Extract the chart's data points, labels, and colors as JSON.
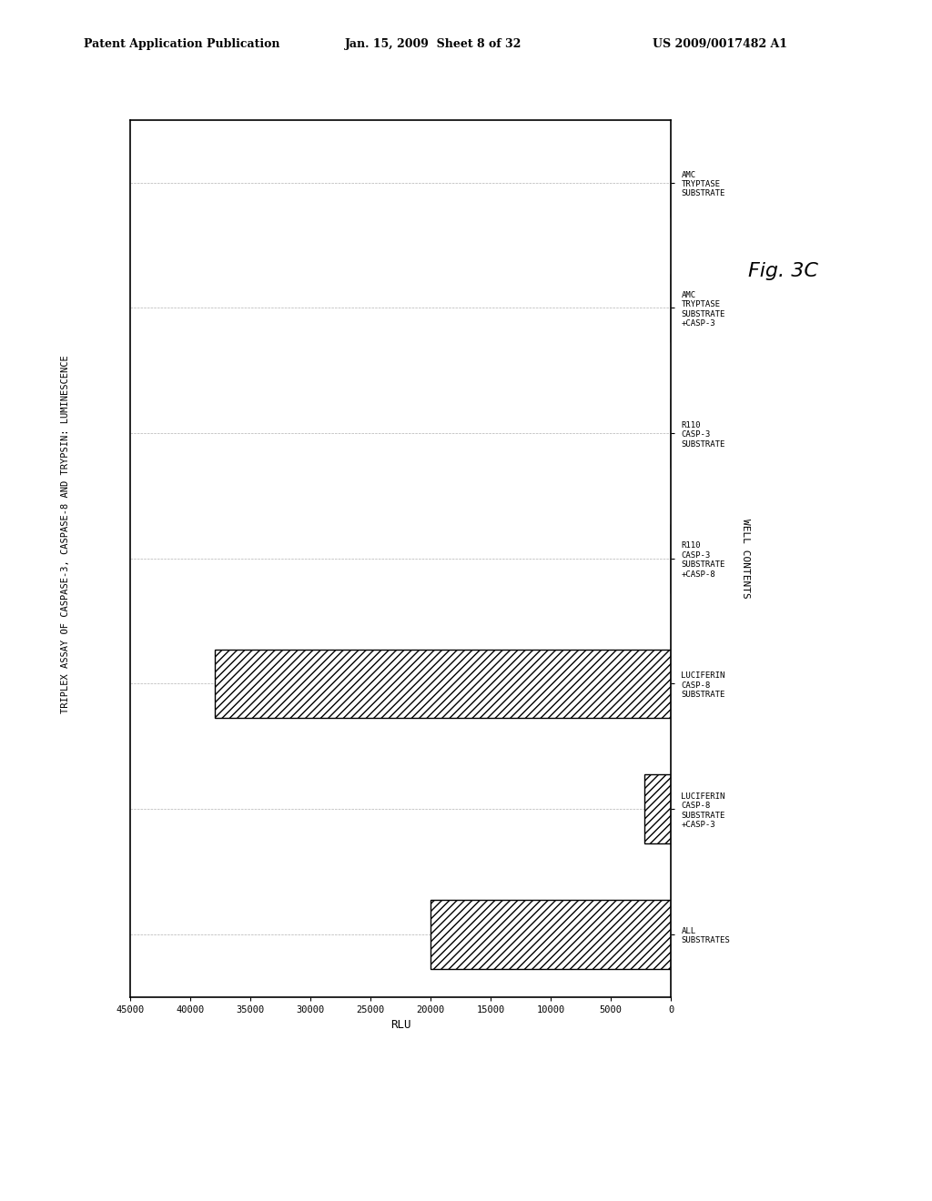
{
  "title": "TRIPLEX ASSAY OF CASPASE-3, CASPASE-8 AND TRYPSIN: LUMINESCENCE",
  "ylabel": "RLU",
  "xlabel_label": "WELL CONTENTS",
  "categories": [
    "AMC\nTRYPTASE\nSUBSTRATE",
    "AMC\nTRYPTASE\nSUBSTRATE\n+CASP-3",
    "R110\nCASP-3\nSUBSTRATE",
    "R110\nCASP-3\nSUBSTRATE\n+CASP-8",
    "LUCIFERIN\nCASP-8\nSUBSTRATE",
    "LUCIFERIN\nCASP-8\nSUBSTRATE\n+CASP-3",
    "ALL\nSUBSTRATES"
  ],
  "values": [
    0,
    0,
    0,
    0,
    38000,
    2200,
    20000
  ],
  "xlim_min": 0,
  "xlim_max": 45000,
  "xticks": [
    0,
    5000,
    10000,
    15000,
    20000,
    25000,
    30000,
    35000,
    40000,
    45000
  ],
  "header_left": "Patent Application Publication",
  "header_mid": "Jan. 15, 2009  Sheet 8 of 32",
  "header_right": "US 2009/0017482 A1",
  "fig_label": "Fig. 3C",
  "hatch_pattern": "////",
  "bar_color": "white",
  "bar_edge_color": "black",
  "background_color": "white",
  "title_fontsize": 7.5,
  "header_fontsize": 9,
  "tick_fontsize": 7.5,
  "cat_fontsize": 6.5
}
